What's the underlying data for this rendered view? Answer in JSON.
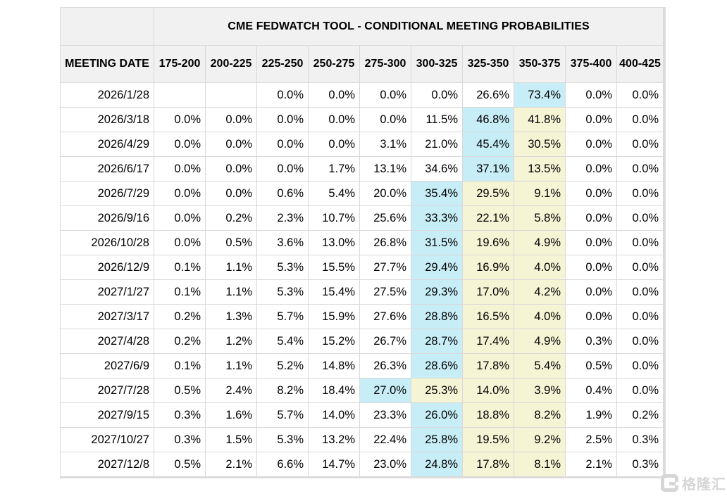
{
  "chart_data": {
    "type": "table",
    "title": "CME FEDWATCH TOOL - CONDITIONAL MEETING PROBABILITIES",
    "columns": [
      "MEETING DATE",
      "175-200",
      "200-225",
      "225-250",
      "250-275",
      "275-300",
      "300-325",
      "325-350",
      "350-375",
      "375-400",
      "400-425"
    ],
    "rows": [
      {
        "date": "2026/1/28",
        "values": [
          "",
          "",
          "0.0%",
          "0.0%",
          "0.0%",
          "0.0%",
          "26.6%",
          "73.4%",
          "0.0%",
          "0.0%"
        ],
        "cyan": 7,
        "yellow": []
      },
      {
        "date": "2026/3/18",
        "values": [
          "0.0%",
          "0.0%",
          "0.0%",
          "0.0%",
          "0.0%",
          "11.5%",
          "46.8%",
          "41.8%",
          "0.0%",
          "0.0%"
        ],
        "cyan": 6,
        "yellow": [
          7
        ]
      },
      {
        "date": "2026/4/29",
        "values": [
          "0.0%",
          "0.0%",
          "0.0%",
          "0.0%",
          "3.1%",
          "21.0%",
          "45.4%",
          "30.5%",
          "0.0%",
          "0.0%"
        ],
        "cyan": 6,
        "yellow": [
          7
        ]
      },
      {
        "date": "2026/6/17",
        "values": [
          "0.0%",
          "0.0%",
          "0.0%",
          "1.7%",
          "13.1%",
          "34.6%",
          "37.1%",
          "13.5%",
          "0.0%",
          "0.0%"
        ],
        "cyan": 6,
        "yellow": [
          7
        ]
      },
      {
        "date": "2026/7/29",
        "values": [
          "0.0%",
          "0.0%",
          "0.6%",
          "5.4%",
          "20.0%",
          "35.4%",
          "29.5%",
          "9.1%",
          "0.0%",
          "0.0%"
        ],
        "cyan": 5,
        "yellow": [
          6,
          7
        ]
      },
      {
        "date": "2026/9/16",
        "values": [
          "0.0%",
          "0.2%",
          "2.3%",
          "10.7%",
          "25.6%",
          "33.3%",
          "22.1%",
          "5.8%",
          "0.0%",
          "0.0%"
        ],
        "cyan": 5,
        "yellow": [
          6,
          7
        ]
      },
      {
        "date": "2026/10/28",
        "values": [
          "0.0%",
          "0.5%",
          "3.6%",
          "13.0%",
          "26.8%",
          "31.5%",
          "19.6%",
          "4.9%",
          "0.0%",
          "0.0%"
        ],
        "cyan": 5,
        "yellow": [
          6,
          7
        ]
      },
      {
        "date": "2026/12/9",
        "values": [
          "0.1%",
          "1.1%",
          "5.3%",
          "15.5%",
          "27.7%",
          "29.4%",
          "16.9%",
          "4.0%",
          "0.0%",
          "0.0%"
        ],
        "cyan": 5,
        "yellow": [
          6,
          7
        ]
      },
      {
        "date": "2027/1/27",
        "values": [
          "0.1%",
          "1.1%",
          "5.3%",
          "15.4%",
          "27.5%",
          "29.3%",
          "17.0%",
          "4.2%",
          "0.0%",
          "0.0%"
        ],
        "cyan": 5,
        "yellow": [
          6,
          7
        ]
      },
      {
        "date": "2027/3/17",
        "values": [
          "0.2%",
          "1.3%",
          "5.7%",
          "15.9%",
          "27.6%",
          "28.8%",
          "16.5%",
          "4.0%",
          "0.0%",
          "0.0%"
        ],
        "cyan": 5,
        "yellow": [
          6,
          7
        ]
      },
      {
        "date": "2027/4/28",
        "values": [
          "0.2%",
          "1.2%",
          "5.4%",
          "15.2%",
          "26.7%",
          "28.7%",
          "17.4%",
          "4.9%",
          "0.3%",
          "0.0%"
        ],
        "cyan": 5,
        "yellow": [
          6,
          7
        ]
      },
      {
        "date": "2027/6/9",
        "values": [
          "0.1%",
          "1.1%",
          "5.2%",
          "14.8%",
          "26.3%",
          "28.6%",
          "17.8%",
          "5.4%",
          "0.5%",
          "0.0%"
        ],
        "cyan": 5,
        "yellow": [
          6,
          7
        ]
      },
      {
        "date": "2027/7/28",
        "values": [
          "0.5%",
          "2.4%",
          "8.2%",
          "18.4%",
          "27.0%",
          "25.3%",
          "14.0%",
          "3.9%",
          "0.4%",
          "0.0%"
        ],
        "cyan": 4,
        "yellow": [
          5,
          6,
          7
        ]
      },
      {
        "date": "2027/9/15",
        "values": [
          "0.3%",
          "1.6%",
          "5.7%",
          "14.0%",
          "23.3%",
          "26.0%",
          "18.8%",
          "8.2%",
          "1.9%",
          "0.2%"
        ],
        "cyan": 5,
        "yellow": [
          6,
          7
        ]
      },
      {
        "date": "2027/10/27",
        "values": [
          "0.3%",
          "1.5%",
          "5.3%",
          "13.2%",
          "22.4%",
          "25.8%",
          "19.5%",
          "9.2%",
          "2.5%",
          "0.3%"
        ],
        "cyan": 5,
        "yellow": [
          6,
          7
        ]
      },
      {
        "date": "2027/12/8",
        "values": [
          "0.5%",
          "2.1%",
          "6.6%",
          "14.7%",
          "23.0%",
          "24.8%",
          "17.8%",
          "8.1%",
          "2.1%",
          "0.3%"
        ],
        "cyan": 5,
        "yellow": [
          6,
          7
        ]
      }
    ]
  },
  "colors": {
    "header_bg": "#f1f1f1",
    "border": "#d9d9d9",
    "text": "#000000",
    "highlight_cyan": "#c7edf6",
    "highlight_yellow": "#f5f4d5",
    "watermark_grey": "#d6d6d6"
  },
  "watermark": {
    "text": "格隆汇"
  }
}
